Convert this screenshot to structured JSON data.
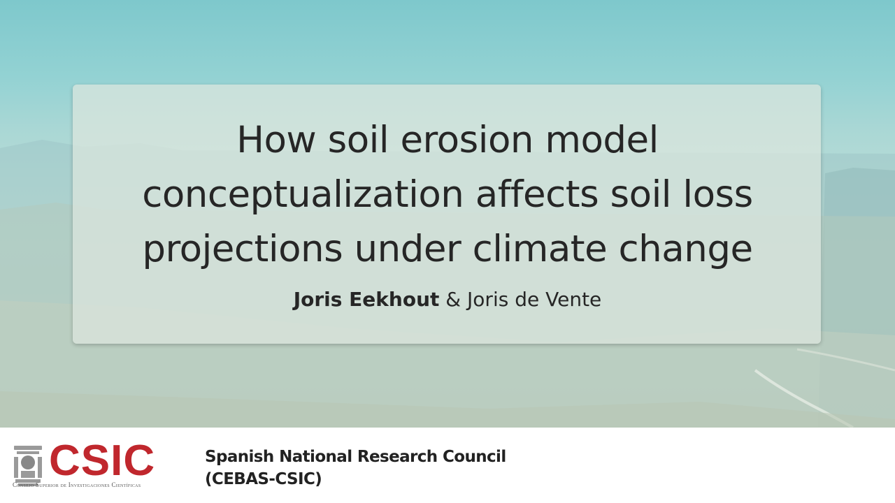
{
  "slide": {
    "title_lines": [
      "How soil erosion model",
      "conceptualization affects soil loss",
      "projections under climate change"
    ],
    "author_primary": "Joris Eekhout",
    "author_separator": " & ",
    "author_secondary": "Joris de Vente"
  },
  "footer": {
    "logo_text": "CSIC",
    "logo_subtitle": "Consejo Superior de Investigaciones Científicas",
    "org_line1": "Spanish National Research Council",
    "org_line2": "(CEBAS-CSIC)"
  },
  "colors": {
    "logo_red": "#c0272d",
    "title_text": "#262626"
  },
  "icons": {
    "emblem": "csic-emblem-icon"
  }
}
